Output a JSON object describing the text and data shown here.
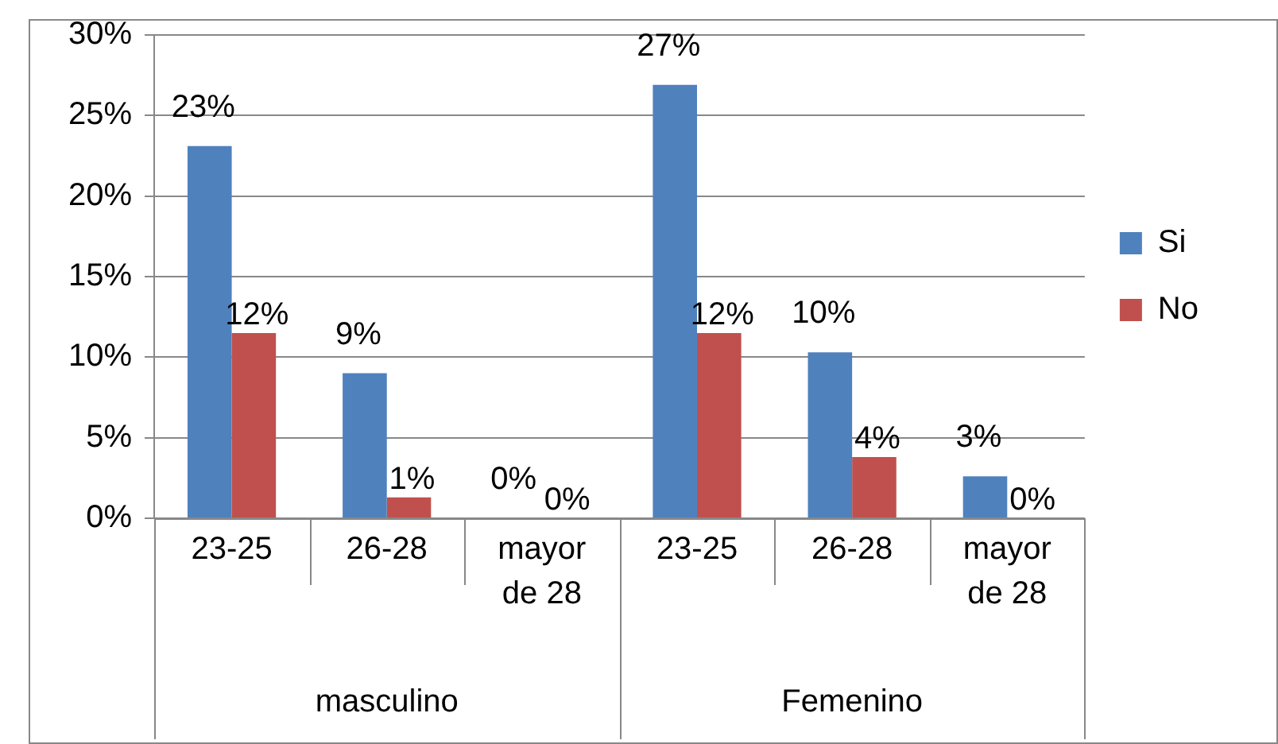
{
  "chart_data": {
    "type": "bar",
    "categories": [
      "23-25",
      "26-28",
      "mayor de 28",
      "23-25",
      "26-28",
      "mayor de 28"
    ],
    "series": [
      {
        "name": "Si",
        "color": "#4f81bd",
        "values": [
          23.1,
          9,
          0,
          26.9,
          10.3,
          2.6
        ],
        "value_labels": [
          "23%",
          "9%",
          "0%",
          "27%",
          "10%",
          "3%"
        ]
      },
      {
        "name": "No",
        "color": "#c0504d",
        "values": [
          11.5,
          1.3,
          0,
          11.5,
          3.8,
          0
        ],
        "value_labels": [
          "12%",
          "1%",
          "0%",
          "12%",
          "4%",
          "0%"
        ]
      }
    ],
    "annotations": [
      "masculino",
      "Femenino"
    ],
    "ylim": [
      0,
      30
    ],
    "yticks": [
      {
        "value": 0,
        "label": "0%"
      },
      {
        "value": 5,
        "label": "5%"
      },
      {
        "value": 10,
        "label": "10%"
      },
      {
        "value": 15,
        "label": "15%"
      },
      {
        "value": 20,
        "label": "20%"
      },
      {
        "value": 25,
        "label": "25%"
      },
      {
        "value": 30,
        "label": "30%"
      }
    ],
    "grid": "y",
    "legend": "right"
  }
}
